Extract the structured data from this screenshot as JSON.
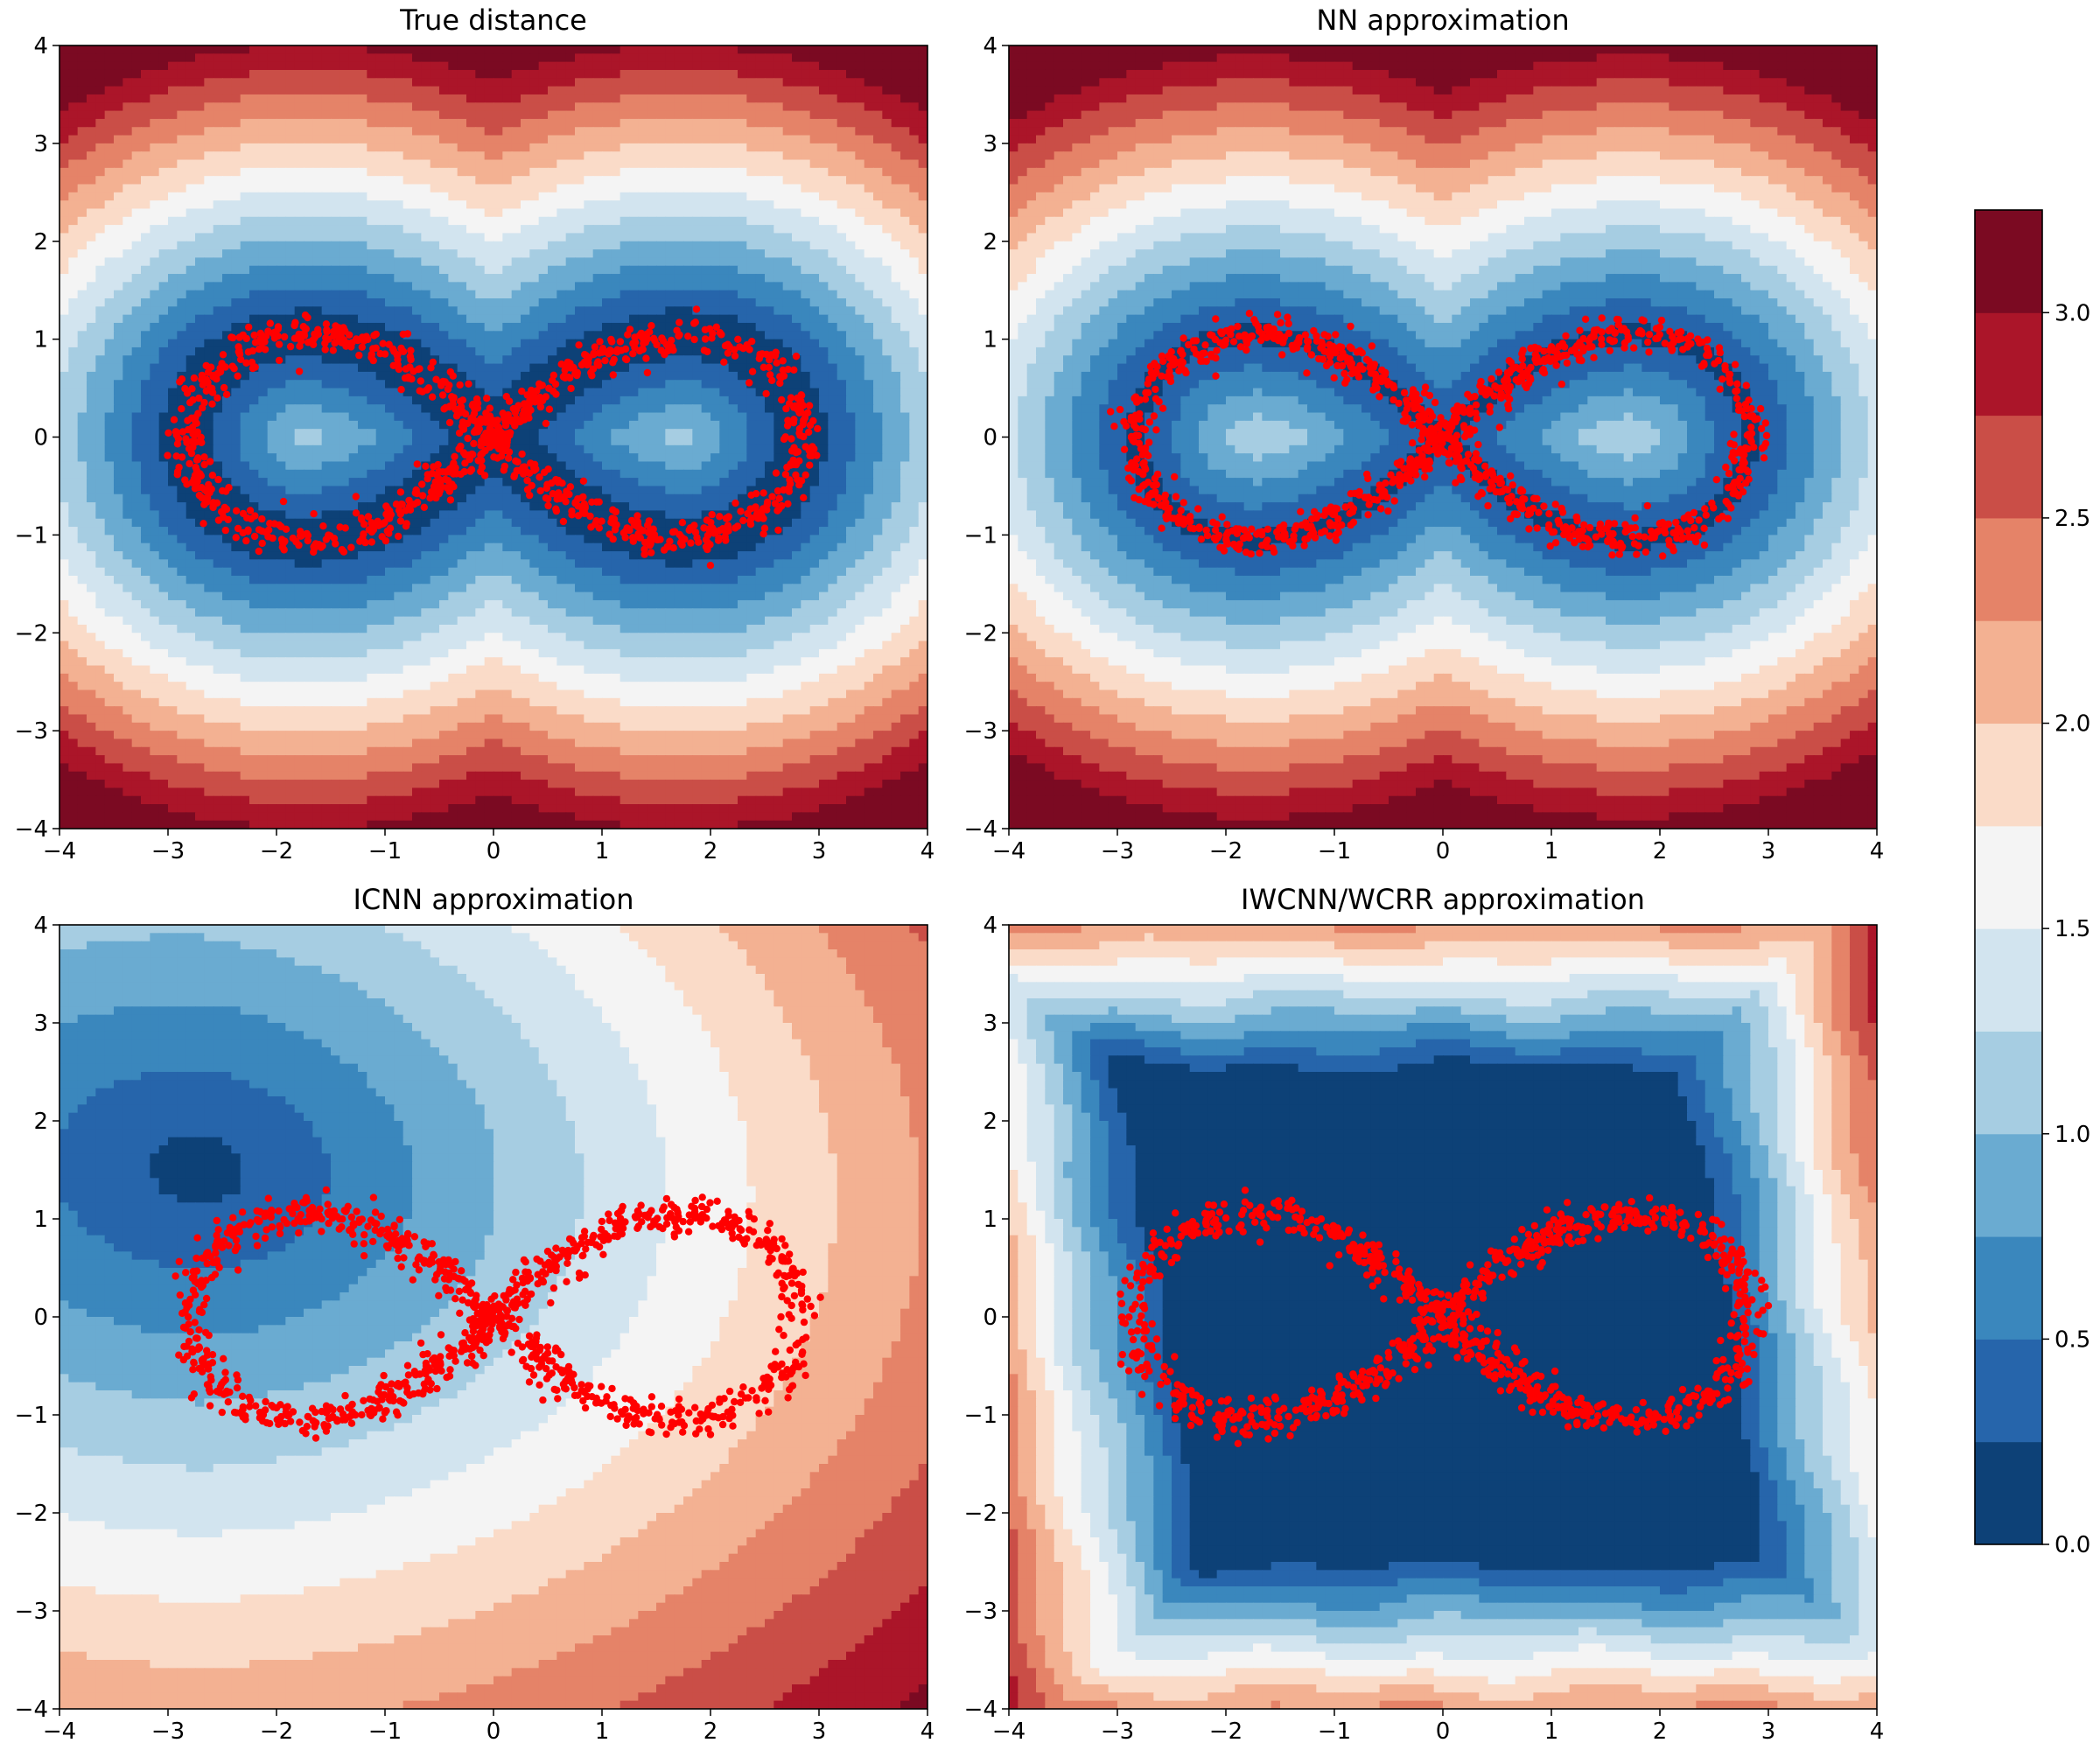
{
  "chart_data": {
    "type": "contour",
    "x_range": [
      -4,
      4
    ],
    "y_range": [
      -4,
      4
    ],
    "x_ticks": [
      -4,
      -3,
      -2,
      -1,
      0,
      1,
      2,
      3,
      4
    ],
    "y_ticks": [
      -4,
      -3,
      -2,
      -1,
      0,
      1,
      2,
      3,
      4
    ],
    "x_tick_labels": [
      "−4",
      "−3",
      "−2",
      "−1",
      "0",
      "1",
      "2",
      "3",
      "4"
    ],
    "y_tick_labels": [
      "−4",
      "−3",
      "−2",
      "−1",
      "0",
      "1",
      "2",
      "3",
      "4"
    ],
    "contour_levels": [
      0.0,
      0.25,
      0.5,
      0.75,
      1.0,
      1.25,
      1.5,
      1.75,
      2.0,
      2.25,
      2.5,
      2.75,
      3.0,
      3.25
    ],
    "colormap": [
      "#0d4177",
      "#2665ab",
      "#3a87bd",
      "#6aabd1",
      "#a6cde2",
      "#d2e4ef",
      "#f4f4f4",
      "#fadbc8",
      "#f3b192",
      "#e58368",
      "#ca4e47",
      "#ab1529",
      "#7b0a22"
    ],
    "scatter_color": "#ff0000",
    "data_shape": "lemniscate (figure-eight) point cloud, lobes centred near x=±1.9, extent x∈[-3.2,3.2], y∈[-1.3,1.3]",
    "colorbar": {
      "ticks": [
        0.0,
        0.5,
        1.0,
        1.5,
        2.0,
        2.5,
        3.0
      ],
      "tick_labels": [
        "0.0",
        "0.5",
        "1.0",
        "1.5",
        "2.0",
        "2.5",
        "3.0"
      ],
      "range": [
        0,
        3.25
      ]
    },
    "panels": [
      {
        "title": "True distance"
      },
      {
        "title": "NN approximation"
      },
      {
        "title": "ICNN approximation"
      },
      {
        "title": "IWCNN/WCRR approximation"
      }
    ]
  }
}
